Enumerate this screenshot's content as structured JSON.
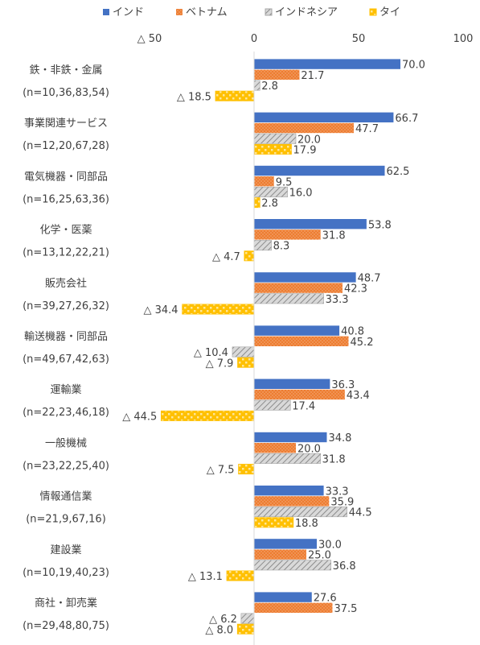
{
  "chart_data": {
    "type": "bar",
    "orientation": "horizontal",
    "title": "",
    "xlabel": "",
    "ylabel": "",
    "xlim": [
      -50,
      100
    ],
    "x_ticks": [
      -50,
      0,
      50,
      100
    ],
    "x_tick_labels": [
      "△ 50",
      "0",
      "50",
      "100"
    ],
    "grid": false,
    "legend_position": "top",
    "negative_prefix": "△ ",
    "categories": [
      [
        "鉄・非鉄・金属",
        "(n=10,36,83,54)"
      ],
      [
        "事業関連サービス",
        "(n=12,20,67,28)"
      ],
      [
        "電気機器・同部品",
        "(n=16,25,63,36)"
      ],
      [
        "化学・医薬",
        "(n=13,12,22,21)"
      ],
      [
        "販売会社",
        "(n=39,27,26,32)"
      ],
      [
        "輸送機器・同部品",
        "(n=49,67,42,63)"
      ],
      [
        "運輸業",
        "(n=22,23,46,18)"
      ],
      [
        "一般機械",
        "(n=23,22,25,40)"
      ],
      [
        "情報通信業",
        "(n=21,9,67,16)"
      ],
      [
        "建設業",
        "(n=10,19,40,23)"
      ],
      [
        "商社・卸売業",
        "(n=29,48,80,75)"
      ]
    ],
    "series": [
      {
        "name": "インド",
        "color": "#4472C4",
        "pattern": "solid",
        "values": [
          70.0,
          66.7,
          62.5,
          53.8,
          48.7,
          40.8,
          36.3,
          34.8,
          33.3,
          30.0,
          27.6
        ]
      },
      {
        "name": "ベトナム",
        "color": "#ED7D31",
        "pattern": "dots",
        "values": [
          21.7,
          47.7,
          9.5,
          31.8,
          42.3,
          45.2,
          43.4,
          20.0,
          35.9,
          25.0,
          37.5
        ]
      },
      {
        "name": "インドネシア",
        "color": "#A5A5A5",
        "pattern": "hatch",
        "values": [
          2.8,
          20.0,
          16.0,
          8.3,
          33.3,
          -10.4,
          17.4,
          31.8,
          44.5,
          36.8,
          -6.2
        ]
      },
      {
        "name": "タイ",
        "color": "#FFC000",
        "pattern": "checker",
        "values": [
          -18.5,
          17.9,
          2.8,
          -4.7,
          -34.4,
          -7.9,
          -44.5,
          -7.5,
          18.8,
          -13.1,
          -8.0
        ]
      }
    ]
  }
}
